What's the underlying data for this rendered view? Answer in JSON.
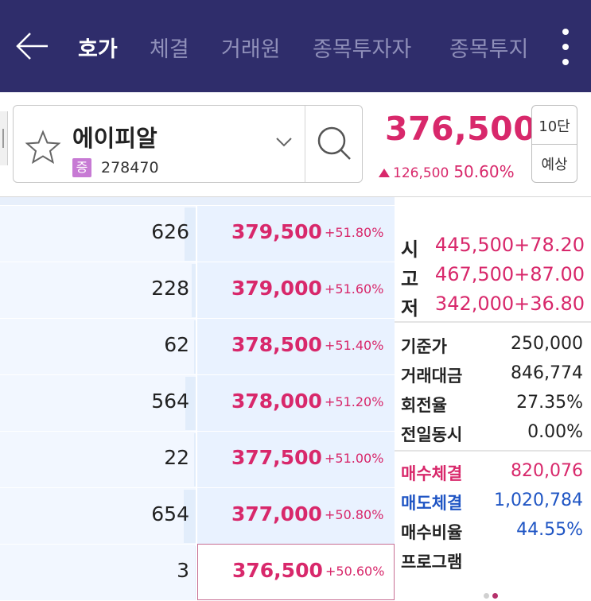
{
  "header": {
    "tabs": [
      {
        "label": "호가",
        "active": true
      },
      {
        "label": "체결",
        "active": false
      },
      {
        "label": "거래원",
        "active": false
      },
      {
        "label": "종목투자자",
        "active": false
      },
      {
        "label": "종목투지",
        "active": false
      }
    ],
    "back_icon": "arrow-left-icon",
    "menu_icon": "kebab-menu-icon"
  },
  "stock": {
    "name": "에이피알",
    "market_badge": "증",
    "code": "278470",
    "price": "376,500",
    "change": "126,500",
    "change_rate": "50.60%",
    "btn_depth": "10단",
    "btn_forecast": "예상"
  },
  "orderbook": {
    "rows": [
      {
        "qty": "626",
        "price": "379,500",
        "rate": "+51.80%",
        "current": false
      },
      {
        "qty": "228",
        "price": "379,000",
        "rate": "+51.60%",
        "current": false
      },
      {
        "qty": "62",
        "price": "378,500",
        "rate": "+51.40%",
        "current": false
      },
      {
        "qty": "564",
        "price": "378,000",
        "rate": "+51.20%",
        "current": false
      },
      {
        "qty": "22",
        "price": "377,500",
        "rate": "+51.00%",
        "current": false
      },
      {
        "qty": "654",
        "price": "377,000",
        "rate": "+50.80%",
        "current": false
      },
      {
        "qty": "3",
        "price": "376,500",
        "rate": "+50.60%",
        "current": true
      }
    ]
  },
  "info": {
    "open": {
      "label": "시",
      "value": "445,500",
      "rate": "+78.20"
    },
    "high": {
      "label": "고",
      "value": "467,500",
      "rate": "+87.00"
    },
    "low": {
      "label": "저",
      "value": "342,000",
      "rate": "+36.80"
    },
    "base_price": {
      "label": "기준가",
      "value": "250,000"
    },
    "trade_amount": {
      "label": "거래대금",
      "value": "846,774"
    },
    "turnover": {
      "label": "회전율",
      "value": "27.35%"
    },
    "prev_same_time": {
      "label": "전일동시",
      "value": "0.00%"
    },
    "buy_volume": {
      "label": "매수체결",
      "value": "820,076"
    },
    "sell_volume": {
      "label": "매도체결",
      "value": "1,020,784"
    },
    "buy_ratio": {
      "label": "매수비율",
      "value": "44.55%"
    },
    "program": {
      "label": "프로그램"
    }
  },
  "colors": {
    "header_bg": "#2f2d6b",
    "up": "#d8286b",
    "blue": "#1f55c4",
    "ask_bg": "#e9f2ff"
  }
}
